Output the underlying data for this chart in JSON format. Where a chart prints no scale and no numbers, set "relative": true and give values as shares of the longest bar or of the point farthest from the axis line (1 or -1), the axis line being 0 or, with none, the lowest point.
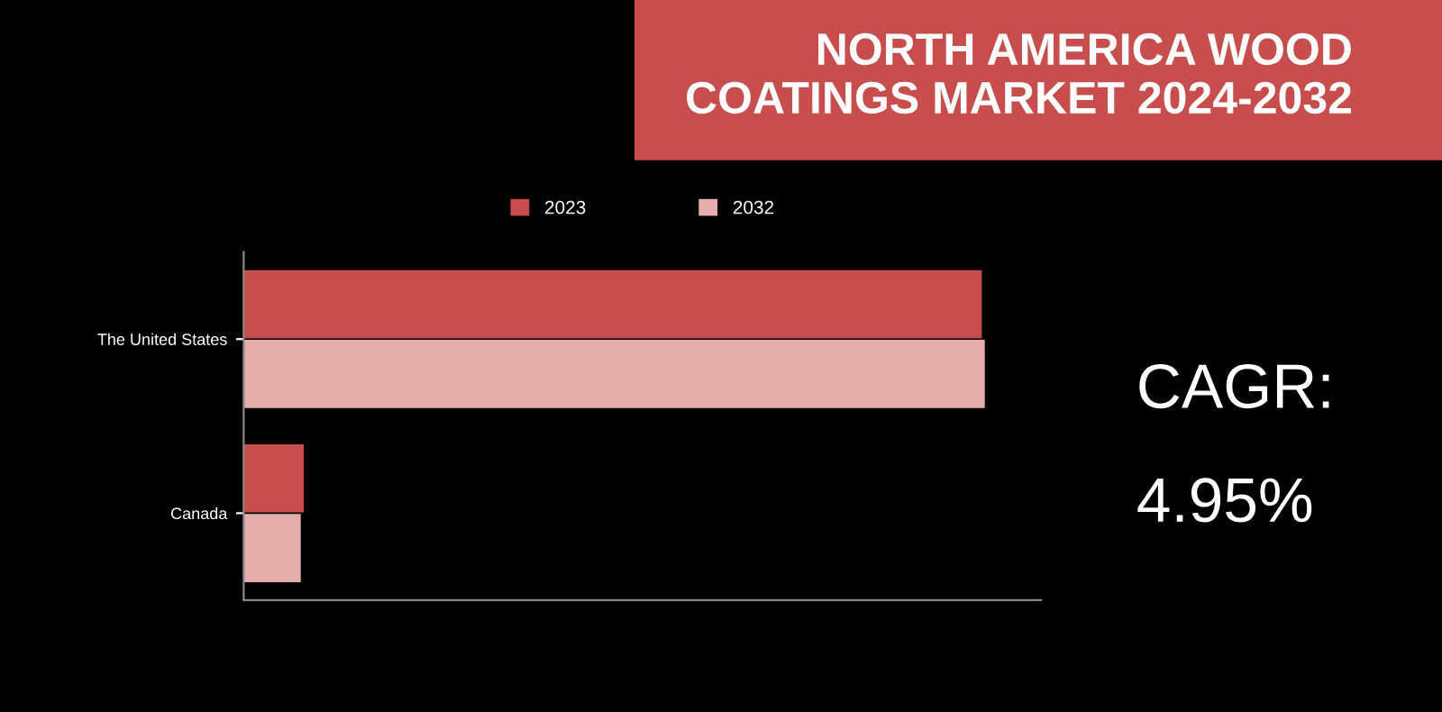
{
  "chart_data": {
    "type": "bar",
    "orientation": "horizontal",
    "relative": true,
    "title": "NORTH AMERICA WOOD COATINGS MARKET 2024-2032",
    "categories": [
      "The United States",
      "Canada"
    ],
    "series": [
      {
        "name": "2023",
        "color": "#c84d4d",
        "values": [
          0.996,
          0.081
        ]
      },
      {
        "name": "2032",
        "color": "#e6adad",
        "values": [
          1,
          0.077
        ]
      }
    ],
    "legend": "top",
    "annotations": [
      "CAGR:",
      "4.95%"
    ]
  }
}
